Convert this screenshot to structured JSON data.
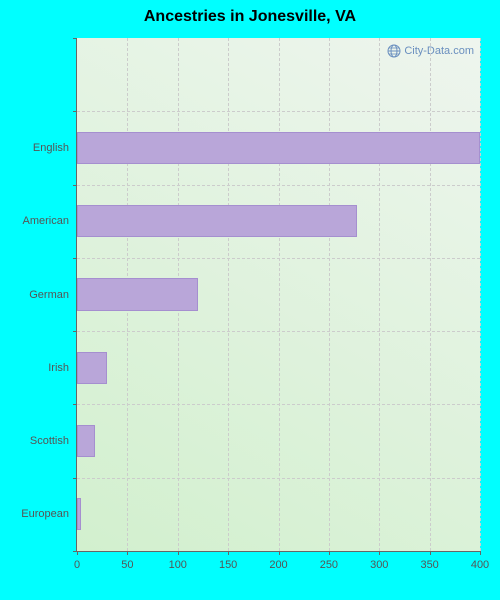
{
  "page": {
    "background_color": "#00ffff"
  },
  "chart": {
    "type": "bar-horizontal",
    "title": "Ancestries in Jonesville, VA",
    "title_fontsize": 16,
    "title_color": "#000000",
    "plot_background_gradient": {
      "from": "#d2f0ce",
      "to": "#eef5ee",
      "angle_deg": 30
    },
    "axis_color": "#666666",
    "grid_color": "#cccccc",
    "tick_label_color": "#555555",
    "tick_fontsize": 11,
    "x": {
      "min": 0,
      "max": 400,
      "tick_step": 50,
      "ticks": [
        0,
        50,
        100,
        150,
        200,
        250,
        300,
        350,
        400
      ]
    },
    "y": {
      "slot_count": 7,
      "categories": [
        "English",
        "American",
        "German",
        "Irish",
        "Scottish",
        "European"
      ]
    },
    "bars": {
      "color": "#b9a6d9",
      "border_color": "#a58fcf",
      "width_fraction": 0.44,
      "values": [
        400,
        278,
        120,
        30,
        18,
        4
      ]
    },
    "watermark": {
      "text": "City-Data.com",
      "color": "#6a8fbf",
      "icon_color": "#6a8fbf"
    }
  }
}
